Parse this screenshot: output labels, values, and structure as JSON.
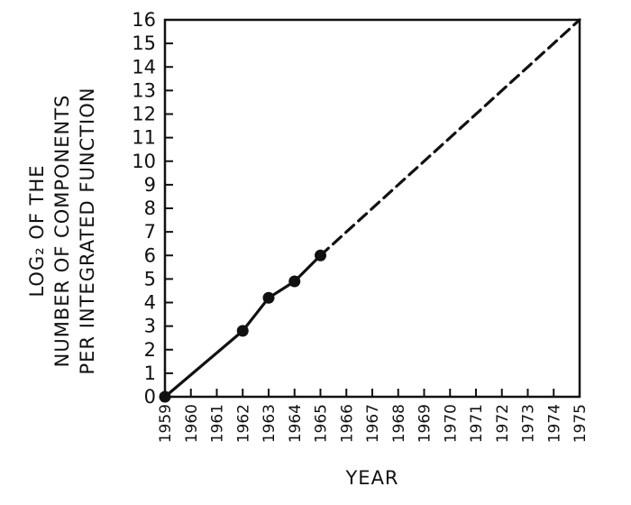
{
  "chart_data": {
    "type": "line",
    "title": "",
    "xlabel": "YEAR",
    "ylabel_lines": [
      "LOG₂ OF THE",
      "NUMBER OF COMPONENTS",
      "PER INTEGRATED FUNCTION"
    ],
    "x_ticks": [
      "1959",
      "1960",
      "1961",
      "1962",
      "1963",
      "1964",
      "1965",
      "1966",
      "1967",
      "1968",
      "1969",
      "1970",
      "1971",
      "1972",
      "1973",
      "1974",
      "1975"
    ],
    "y_ticks": [
      "0",
      "1",
      "2",
      "3",
      "4",
      "5",
      "6",
      "7",
      "8",
      "9",
      "10",
      "11",
      "12",
      "13",
      "14",
      "15",
      "16"
    ],
    "xlim": [
      1959,
      1975
    ],
    "ylim": [
      0,
      16
    ],
    "grid": false,
    "series": [
      {
        "style": "solid",
        "markers": true,
        "points": [
          {
            "x": 1959,
            "y": 0
          },
          {
            "x": 1962,
            "y": 2.8
          },
          {
            "x": 1963,
            "y": 4.2
          },
          {
            "x": 1964,
            "y": 4.9
          },
          {
            "x": 1965,
            "y": 6.0
          }
        ]
      },
      {
        "style": "dashed",
        "markers": false,
        "points": [
          {
            "x": 1965,
            "y": 6.0
          },
          {
            "x": 1975,
            "y": 16
          }
        ]
      }
    ],
    "colors": {
      "ink": "#111111",
      "background": "#ffffff"
    }
  }
}
